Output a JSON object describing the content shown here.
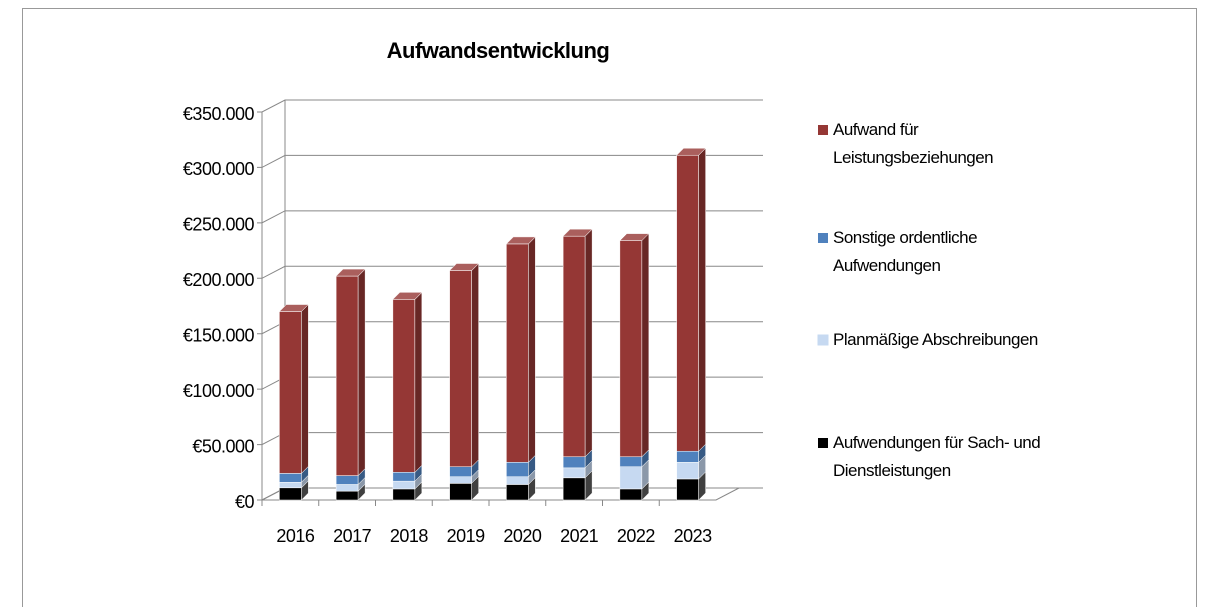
{
  "chart_data": {
    "type": "bar3d_stacked",
    "title": "Aufwandsentwicklung",
    "categories": [
      "2016",
      "2017",
      "2018",
      "2019",
      "2020",
      "2021",
      "2022",
      "2023"
    ],
    "series": [
      {
        "name": "Aufwendungen für Sach- und Dienstleistungen",
        "color": "#000000",
        "values": [
          11000,
          8000,
          10000,
          15000,
          14000,
          20000,
          10000,
          19000
        ]
      },
      {
        "name": "Planmäßige Abschreibungen",
        "color": "#c6d9f1",
        "values": [
          5000,
          6000,
          7000,
          6000,
          7000,
          9000,
          20000,
          15000
        ]
      },
      {
        "name": "Sonstige ordentliche Aufwendungen",
        "color": "#4f81bd",
        "values": [
          8000,
          8000,
          8000,
          9000,
          13000,
          10000,
          9000,
          10000
        ]
      },
      {
        "name": "Aufwand für Leistungsbeziehungen",
        "color": "#953735",
        "values": [
          146000,
          180000,
          156000,
          177000,
          197000,
          199000,
          195000,
          267000
        ]
      }
    ],
    "ylim": [
      0,
      350000
    ],
    "yticks": [
      {
        "value": 0,
        "label": "€0"
      },
      {
        "value": 50000,
        "label": "€50.000"
      },
      {
        "value": 100000,
        "label": "€100.000"
      },
      {
        "value": 150000,
        "label": "€150.000"
      },
      {
        "value": 200000,
        "label": "€200.000"
      },
      {
        "value": 250000,
        "label": "€250.000"
      },
      {
        "value": 300000,
        "label": "€300.000"
      },
      {
        "value": 350000,
        "label": "€350.000"
      }
    ],
    "grid": true,
    "legend": "right"
  }
}
